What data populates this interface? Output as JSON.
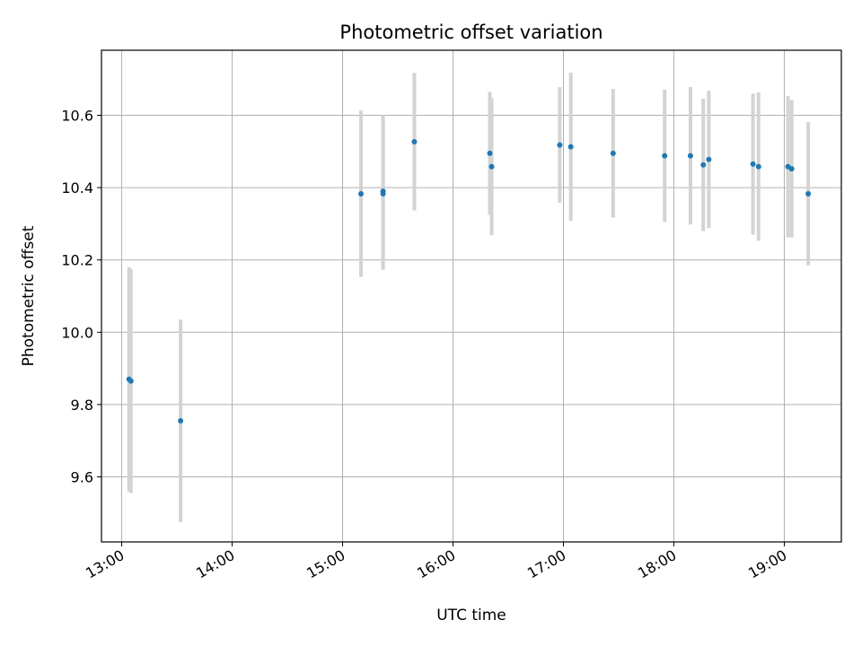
{
  "chart_data": {
    "type": "scatter",
    "title": "Photometric offset variation",
    "xlabel": "UTC time",
    "ylabel": "Photometric offset",
    "grid": true,
    "xlim": [
      "12:49",
      "19:31"
    ],
    "ylim": [
      9.42,
      10.78
    ],
    "xticks": [
      "13:00",
      "14:00",
      "15:00",
      "16:00",
      "17:00",
      "18:00",
      "19:00"
    ],
    "yticks": [
      9.6,
      9.8,
      10.0,
      10.2,
      10.4,
      10.6
    ],
    "point_color": "#1f77b4",
    "errorbar_color": "#d3d3d3",
    "points": [
      {
        "x": "13:04",
        "y": 9.87,
        "yerr": 0.31
      },
      {
        "x": "13:05",
        "y": 9.865,
        "yerr": 0.31
      },
      {
        "x": "13:32",
        "y": 9.755,
        "yerr": 0.28
      },
      {
        "x": "15:10",
        "y": 10.383,
        "yerr": 0.23
      },
      {
        "x": "15:22",
        "y": 10.383,
        "yerr": 0.21
      },
      {
        "x": "15:22",
        "y": 10.39,
        "yerr": 0.21
      },
      {
        "x": "15:39",
        "y": 10.527,
        "yerr": 0.19
      },
      {
        "x": "16:20",
        "y": 10.495,
        "yerr": 0.17
      },
      {
        "x": "16:21",
        "y": 10.458,
        "yerr": 0.19
      },
      {
        "x": "16:58",
        "y": 10.518,
        "yerr": 0.16
      },
      {
        "x": "17:04",
        "y": 10.513,
        "yerr": 0.205
      },
      {
        "x": "17:27",
        "y": 10.495,
        "yerr": 0.178
      },
      {
        "x": "17:55",
        "y": 10.488,
        "yerr": 0.183
      },
      {
        "x": "18:09",
        "y": 10.488,
        "yerr": 0.19
      },
      {
        "x": "18:16",
        "y": 10.463,
        "yerr": 0.183
      },
      {
        "x": "18:19",
        "y": 10.478,
        "yerr": 0.19
      },
      {
        "x": "18:43",
        "y": 10.465,
        "yerr": 0.195
      },
      {
        "x": "18:46",
        "y": 10.458,
        "yerr": 0.205
      },
      {
        "x": "19:02",
        "y": 10.458,
        "yerr": 0.195
      },
      {
        "x": "19:04",
        "y": 10.452,
        "yerr": 0.19
      },
      {
        "x": "19:13",
        "y": 10.383,
        "yerr": 0.198
      }
    ]
  }
}
